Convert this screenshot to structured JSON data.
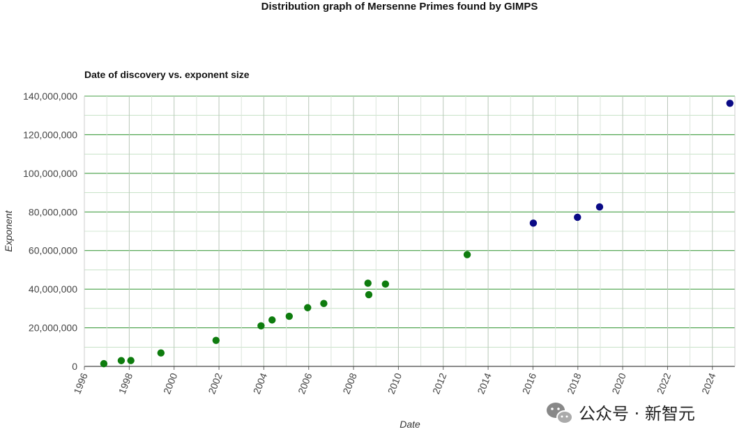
{
  "chart_data": {
    "type": "scatter",
    "title": "Distribution graph of Mersenne Primes found by GIMPS",
    "subtitle": "Date of discovery vs. exponent size",
    "xlabel": "Date",
    "ylabel": "Exponent",
    "xlim": [
      "1996-01-01",
      "2025-01-01"
    ],
    "ylim": [
      0,
      140000000
    ],
    "x_ticks": [
      "1996",
      "1998",
      "2000",
      "2002",
      "2004",
      "2006",
      "2008",
      "2010",
      "2012",
      "2014",
      "2016",
      "2018",
      "2020",
      "2022",
      "2024"
    ],
    "y_ticks": [
      "0",
      "20,000,000",
      "40,000,000",
      "60,000,000",
      "80,000,000",
      "100,000,000",
      "120,000,000",
      "140,000,000"
    ],
    "y_tick_values": [
      0,
      20000000,
      40000000,
      60000000,
      80000000,
      100000000,
      120000000,
      140000000
    ],
    "grid": true,
    "colors": {
      "green": "#0e7c0e",
      "navy": "#0a0a86",
      "grid": "#3a9a3a"
    },
    "points": [
      {
        "x": "1996-11-13",
        "y": 1398269,
        "color": "green"
      },
      {
        "x": "1997-08-24",
        "y": 2976221,
        "color": "green"
      },
      {
        "x": "1998-01-27",
        "y": 3021377,
        "color": "green"
      },
      {
        "x": "1999-06-01",
        "y": 6972593,
        "color": "green"
      },
      {
        "x": "2001-11-14",
        "y": 13466917,
        "color": "green"
      },
      {
        "x": "2003-11-17",
        "y": 20996011,
        "color": "green"
      },
      {
        "x": "2004-05-15",
        "y": 24036583,
        "color": "green"
      },
      {
        "x": "2005-02-18",
        "y": 25964951,
        "color": "green"
      },
      {
        "x": "2005-12-15",
        "y": 30402457,
        "color": "green"
      },
      {
        "x": "2006-09-04",
        "y": 32582657,
        "color": "green"
      },
      {
        "x": "2008-08-23",
        "y": 43112609,
        "color": "green"
      },
      {
        "x": "2008-09-06",
        "y": 37156667,
        "color": "green"
      },
      {
        "x": "2009-06-04",
        "y": 42643801,
        "color": "green"
      },
      {
        "x": "2013-01-25",
        "y": 57885161,
        "color": "green"
      },
      {
        "x": "2016-01-07",
        "y": 74207281,
        "color": "navy"
      },
      {
        "x": "2017-12-26",
        "y": 77232917,
        "color": "navy"
      },
      {
        "x": "2018-12-21",
        "y": 82589933,
        "color": "navy"
      },
      {
        "x": "2024-10-12",
        "y": 136279841,
        "color": "navy"
      }
    ]
  },
  "watermark": {
    "text": "公众号 · 新智元",
    "icon": "wechat-icon"
  }
}
